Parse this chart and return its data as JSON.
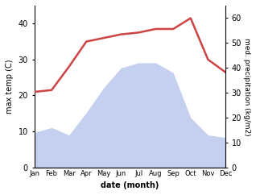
{
  "months": [
    "Jan",
    "Feb",
    "Mar",
    "Apr",
    "May",
    "Jun",
    "Jul",
    "Aug",
    "Sep",
    "Oct",
    "Nov",
    "Dec"
  ],
  "month_indices": [
    1,
    2,
    3,
    4,
    5,
    6,
    7,
    8,
    9,
    10,
    11,
    12
  ],
  "temp": [
    21.0,
    21.5,
    28.0,
    35.0,
    36.0,
    37.0,
    37.5,
    38.5,
    38.5,
    41.5,
    30.0,
    26.5
  ],
  "precip": [
    14,
    16,
    13,
    22,
    32,
    40,
    42,
    42,
    38,
    20,
    13,
    12
  ],
  "temp_color": "#cc4444",
  "precip_fill_color": "#c5cff0",
  "temp_lw": 1.8,
  "ylim_left": [
    0,
    45
  ],
  "ylim_right": [
    0,
    65
  ],
  "left_yticks": [
    0,
    10,
    20,
    30,
    40
  ],
  "right_yticks": [
    0,
    10,
    20,
    30,
    40,
    50,
    60
  ],
  "ylabel_left": "max temp (C)",
  "ylabel_right": "med. precipitation (kg/m2)",
  "xlabel": "date (month)",
  "bg_color": "#ffffff",
  "fig_width": 3.18,
  "fig_height": 2.42,
  "dpi": 100
}
